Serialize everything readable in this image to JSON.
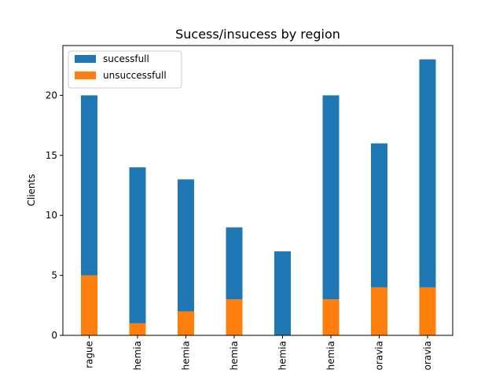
{
  "chart_data": {
    "type": "bar",
    "stacked": true,
    "title": "Sucess/insucess by region",
    "xlabel": "",
    "ylabel": "Clients",
    "categories": [
      "rague",
      "hemia",
      "hemia",
      "hemia",
      "hemia",
      "hemia",
      "oravia",
      "oravia"
    ],
    "series": [
      {
        "name": "unsuccessfull",
        "values": [
          5,
          1,
          2,
          3,
          0,
          3,
          4,
          4
        ],
        "color": "#ff7f0e"
      },
      {
        "name": "sucessfull",
        "values": [
          15,
          13,
          11,
          6,
          7,
          17,
          12,
          19
        ],
        "color": "#1f77b4"
      }
    ],
    "totals": [
      20,
      14,
      13,
      9,
      7,
      20,
      16,
      23
    ],
    "ylim": [
      0,
      24.15
    ],
    "yticks": [
      0,
      5,
      10,
      15,
      20
    ],
    "legend": {
      "position": "top-left",
      "order": [
        "sucessfull",
        "unsuccessfull"
      ]
    },
    "grid": false
  }
}
